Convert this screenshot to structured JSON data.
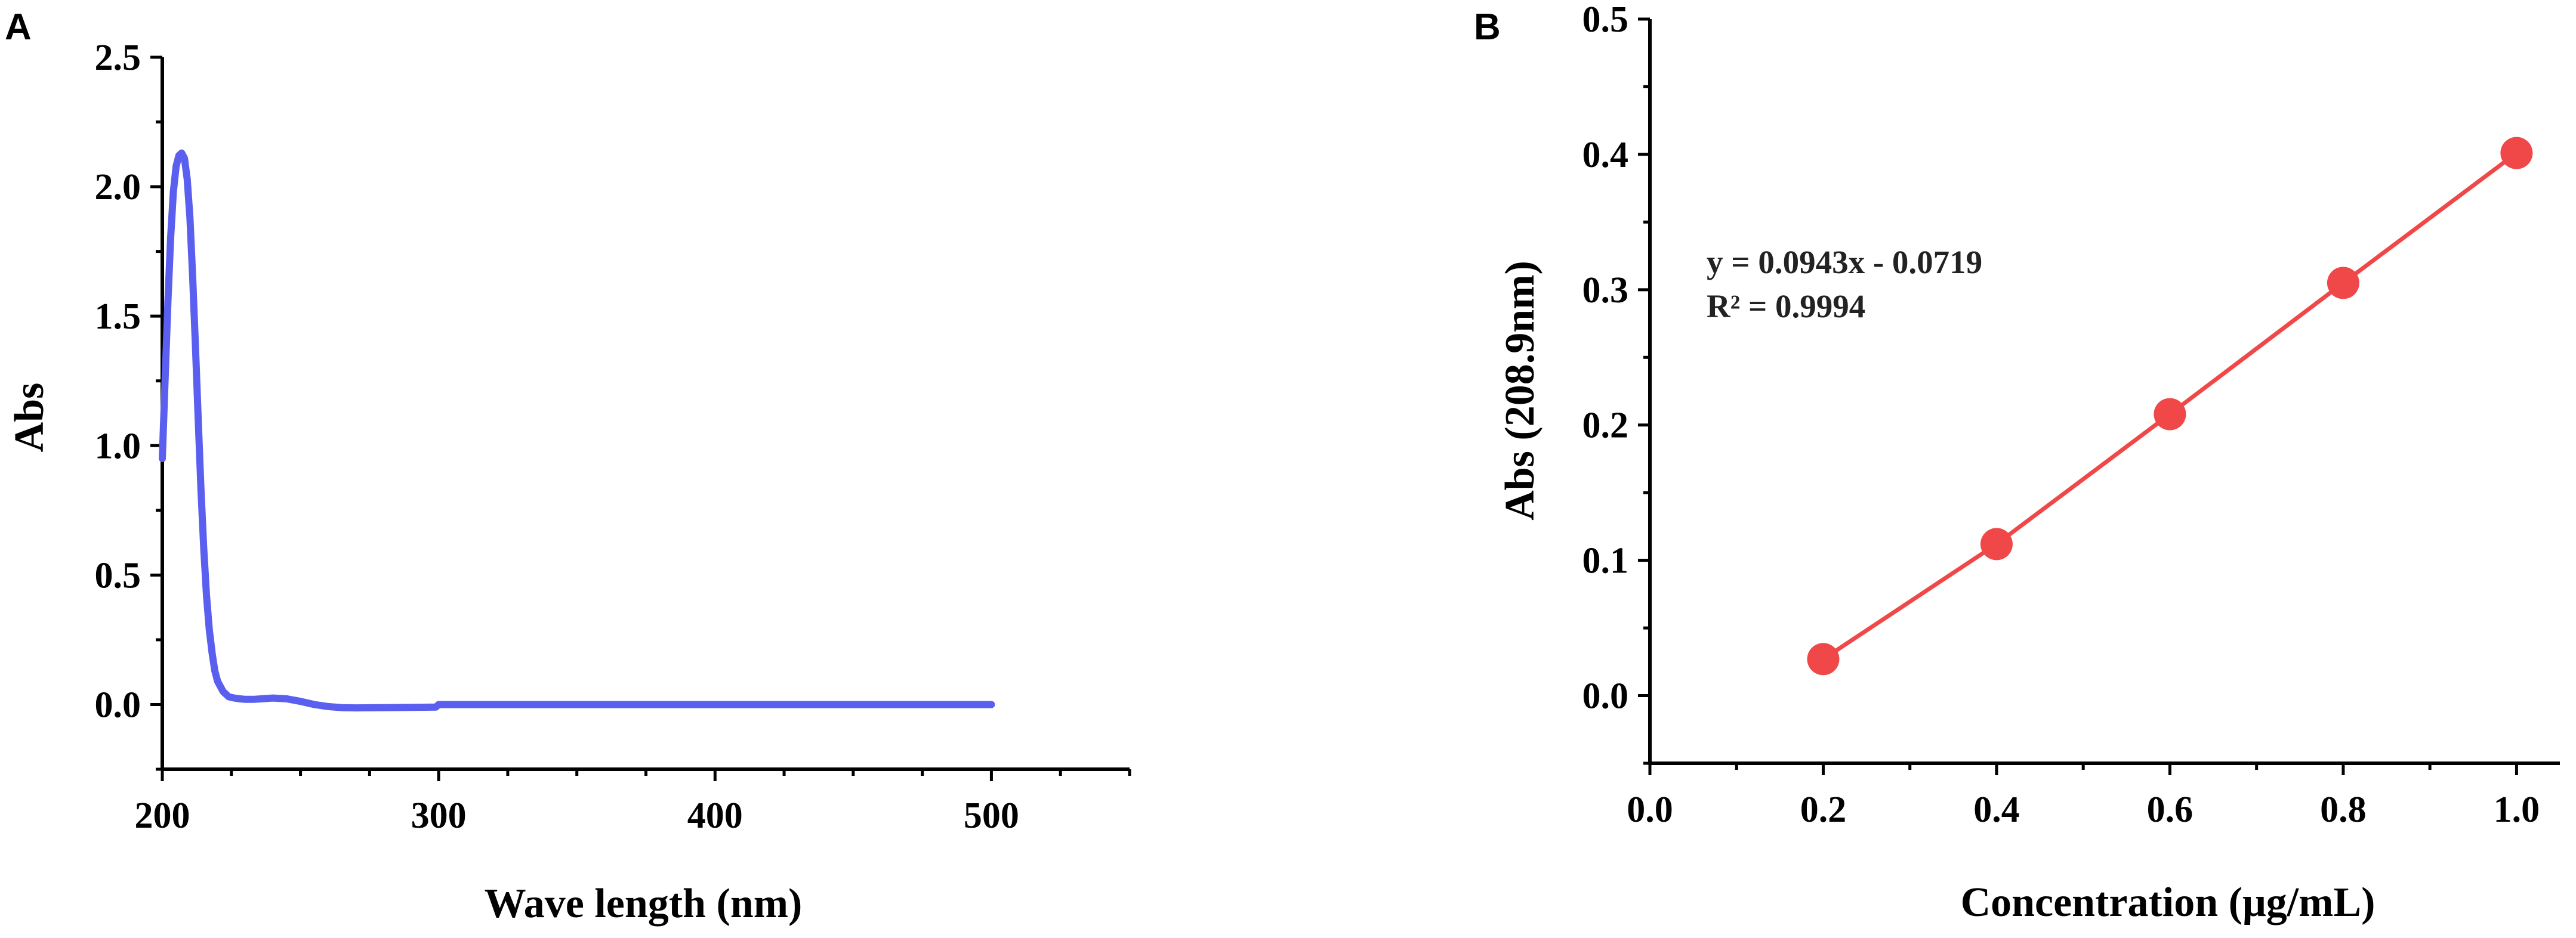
{
  "figure": {
    "background": "#ffffff"
  },
  "chart_data": [
    {
      "panel": "A",
      "type": "line",
      "title": "",
      "xlabel": "Wave length (nm)",
      "ylabel": "Abs",
      "xlim": [
        200,
        550
      ],
      "ylim": [
        -0.25,
        2.5
      ],
      "xticks": [
        200,
        300,
        400,
        500
      ],
      "xtick_labels": [
        "200",
        "300",
        "400",
        "500"
      ],
      "xminor": [
        225,
        250,
        275,
        325,
        350,
        375,
        425,
        450,
        475,
        525,
        550
      ],
      "yticks": [
        0.0,
        0.5,
        1.0,
        1.5,
        2.0,
        2.5
      ],
      "ytick_labels": [
        "0.0",
        "0.5",
        "1.0",
        "1.5",
        "2.0",
        "2.5"
      ],
      "yminor": [
        -0.25,
        0.25,
        0.75,
        1.25,
        1.75,
        2.25
      ],
      "grid": false,
      "series": [
        {
          "color": "#5a5ff0",
          "x": [
            200,
            201,
            202,
            203,
            204,
            205,
            206,
            207,
            208,
            209,
            210,
            211,
            212,
            213,
            214,
            215,
            216,
            217,
            218,
            219,
            220,
            222,
            224,
            226,
            228,
            230,
            233,
            236,
            240,
            245,
            250,
            255,
            260,
            265,
            270,
            280,
            290,
            299,
            300,
            320,
            350,
            400,
            450,
            500
          ],
          "y": [
            0.95,
            1.25,
            1.55,
            1.8,
            1.98,
            2.08,
            2.12,
            2.13,
            2.11,
            2.03,
            1.88,
            1.65,
            1.38,
            1.1,
            0.83,
            0.6,
            0.42,
            0.29,
            0.2,
            0.13,
            0.09,
            0.05,
            0.03,
            0.025,
            0.022,
            0.02,
            0.02,
            0.022,
            0.025,
            0.022,
            0.012,
            0.0,
            -0.008,
            -0.012,
            -0.013,
            -0.012,
            -0.011,
            -0.01,
            0.0,
            0.0,
            0.0,
            0.0,
            0.0,
            0.0
          ]
        }
      ]
    },
    {
      "panel": "B",
      "type": "scatter",
      "title": "",
      "xlabel": "Concentration (μg/mL)",
      "ylabel": "Abs (208.9nm)",
      "xlim": [
        0.0,
        1.05
      ],
      "ylim": [
        -0.05,
        0.5
      ],
      "xticks": [
        0.0,
        0.2,
        0.4,
        0.6,
        0.8,
        1.0
      ],
      "xtick_labels": [
        "0.0",
        "0.2",
        "0.4",
        "0.6",
        "0.8",
        "1.0"
      ],
      "xminor": [
        0.1,
        0.3,
        0.5,
        0.7,
        0.9
      ],
      "yticks": [
        0.0,
        0.1,
        0.2,
        0.3,
        0.4,
        0.5
      ],
      "ytick_labels": [
        "0.0",
        "0.1",
        "0.2",
        "0.3",
        "0.4",
        "0.5"
      ],
      "yminor": [
        -0.05,
        0.05,
        0.15,
        0.25,
        0.35,
        0.45
      ],
      "grid": false,
      "annotations": [
        "y = 0.0943x - 0.0719",
        "R² = 0.9994"
      ],
      "series": [
        {
          "color": "#f04848",
          "x": [
            0.2,
            0.4,
            0.6,
            0.8,
            1.0
          ],
          "y": [
            0.027,
            0.112,
            0.208,
            0.305,
            0.401
          ]
        }
      ]
    }
  ]
}
